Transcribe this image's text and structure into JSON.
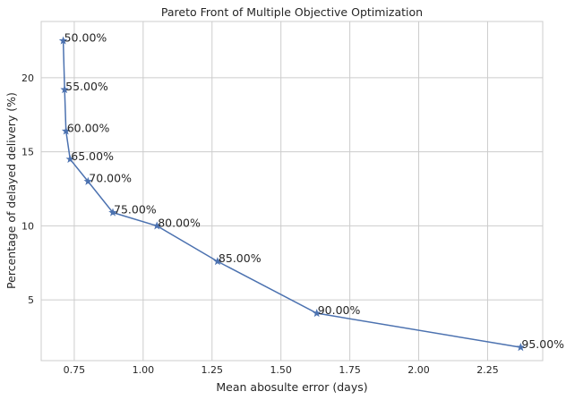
{
  "chart_data": {
    "type": "line",
    "title": "Pareto Front of Multiple Objective Optimization",
    "xlabel": "Mean abosulte error (days)",
    "ylabel": "Percentage of delayed delivery (%)",
    "xlim": [
      0.63,
      2.45
    ],
    "ylim": [
      0.9,
      23.8
    ],
    "xticks": [
      0.75,
      1.0,
      1.25,
      1.5,
      1.75,
      2.0,
      2.25
    ],
    "xtick_labels": [
      "0.75",
      "1.00",
      "1.25",
      "1.50",
      "1.75",
      "2.00",
      "2.25"
    ],
    "yticks": [
      5,
      10,
      15,
      20
    ],
    "ytick_labels": [
      "5",
      "10",
      "15",
      "20"
    ],
    "grid": true,
    "marker": "star",
    "color": "#4c72b0",
    "series": [
      {
        "x": [
          0.71,
          0.715,
          0.72,
          0.735,
          0.8,
          0.89,
          1.05,
          1.27,
          1.63,
          2.37
        ],
        "y": [
          22.5,
          19.2,
          16.4,
          14.5,
          13.0,
          10.9,
          10.0,
          7.6,
          4.1,
          1.8
        ],
        "labels": [
          "50.00%",
          "55.00%",
          "60.00%",
          "65.00%",
          "70.00%",
          "75.00%",
          "80.00%",
          "85.00%",
          "90.00%",
          "95.00%"
        ]
      }
    ]
  }
}
